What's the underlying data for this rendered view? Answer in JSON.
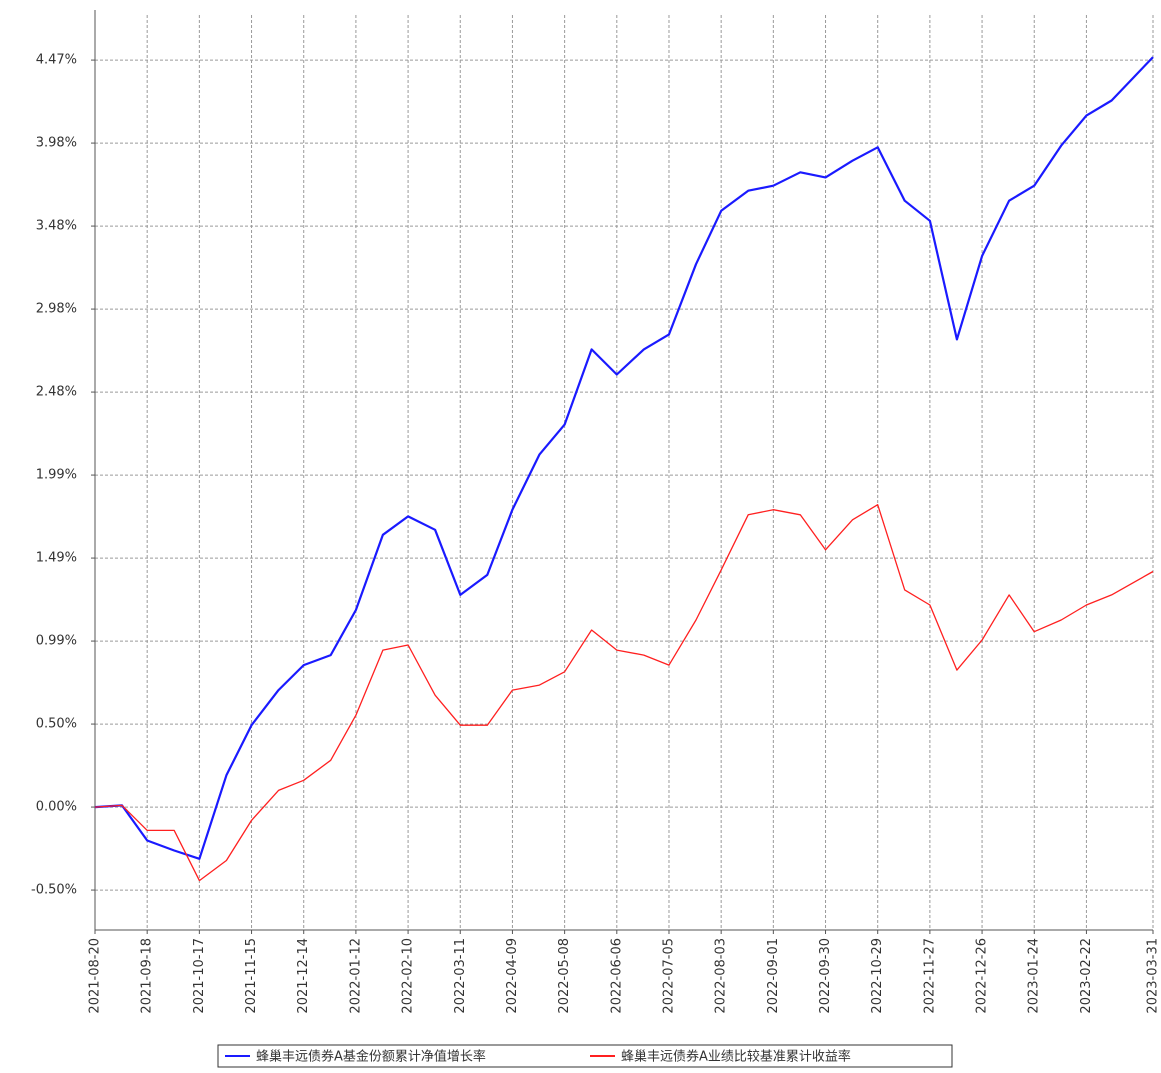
{
  "chart_data": {
    "type": "line",
    "x": [
      "2021-08-20",
      "2021-09-04",
      "2021-09-18",
      "2021-10-03",
      "2021-10-17",
      "2021-11-01",
      "2021-11-15",
      "2021-11-30",
      "2021-12-14",
      "2021-12-29",
      "2022-01-12",
      "2022-01-27",
      "2022-02-10",
      "2022-02-25",
      "2022-03-11",
      "2022-03-26",
      "2022-04-09",
      "2022-04-24",
      "2022-05-08",
      "2022-05-23",
      "2022-06-06",
      "2022-06-21",
      "2022-07-05",
      "2022-07-20",
      "2022-08-03",
      "2022-08-18",
      "2022-09-01",
      "2022-09-16",
      "2022-09-30",
      "2022-10-15",
      "2022-10-29",
      "2022-11-13",
      "2022-11-27",
      "2022-12-12",
      "2022-12-26",
      "2023-01-10",
      "2023-01-24",
      "2023-02-08",
      "2023-02-22",
      "2023-03-08",
      "2023-03-31"
    ],
    "series": [
      {
        "name": "蜂巢丰远债券A基金份额累计净值增长率",
        "color": "#1a1aff",
        "values": [
          0,
          0.01,
          -0.2,
          -0.26,
          -0.31,
          0.19,
          0.49,
          0.7,
          0.85,
          0.91,
          1.18,
          1.63,
          1.74,
          1.66,
          1.27,
          1.39,
          1.78,
          2.11,
          2.29,
          2.74,
          2.59,
          2.74,
          2.83,
          3.25,
          3.57,
          3.69,
          3.72,
          3.8,
          3.77,
          3.87,
          3.95,
          3.63,
          3.51,
          2.8,
          3.3,
          3.63,
          3.72,
          3.96,
          4.14,
          4.23,
          4.49
        ]
      },
      {
        "name": "蜂巢丰远债券A业绩比较基准累计收益率",
        "color": "#ff2020",
        "values": [
          0,
          0.01,
          -0.14,
          -0.14,
          -0.44,
          -0.32,
          -0.08,
          0.1,
          0.16,
          0.28,
          0.55,
          0.94,
          0.97,
          0.67,
          0.49,
          0.49,
          0.7,
          0.73,
          0.81,
          1.06,
          0.94,
          0.91,
          0.85,
          1.12,
          1.42,
          1.75,
          1.78,
          1.75,
          1.54,
          1.72,
          1.81,
          1.3,
          1.21,
          0.82,
          1.0,
          1.27,
          1.05,
          1.12,
          1.21,
          1.27,
          1.41
        ]
      }
    ],
    "xlim": [
      "2021-08-20",
      "2023-03-31"
    ],
    "xticks": [
      "2021-08-20",
      "2021-09-18",
      "2021-10-17",
      "2021-11-15",
      "2021-12-14",
      "2022-01-12",
      "2022-02-10",
      "2022-03-11",
      "2022-04-09",
      "2022-05-08",
      "2022-06-06",
      "2022-07-05",
      "2022-08-03",
      "2022-09-01",
      "2022-09-30",
      "2022-10-29",
      "2022-11-27",
      "2022-12-26",
      "2023-01-24",
      "2023-02-22",
      "2023-03-31"
    ],
    "ylim": [
      -0.736,
      4.742
    ],
    "yticks": [
      {
        "value": -0.4969,
        "label": "-0.50%"
      },
      {
        "value": 0,
        "label": "0.00%"
      },
      {
        "value": 0.4969,
        "label": "0.50%"
      },
      {
        "value": 0.9938,
        "label": "0.99%"
      },
      {
        "value": 1.4907,
        "label": "1.49%"
      },
      {
        "value": 1.9876,
        "label": "1.99%"
      },
      {
        "value": 2.4845,
        "label": "2.48%"
      },
      {
        "value": 2.9814,
        "label": "2.98%"
      },
      {
        "value": 3.4783,
        "label": "3.48%"
      },
      {
        "value": 3.9752,
        "label": "3.98%"
      },
      {
        "value": 4.4721,
        "label": "4.47%"
      }
    ],
    "grid": true
  }
}
